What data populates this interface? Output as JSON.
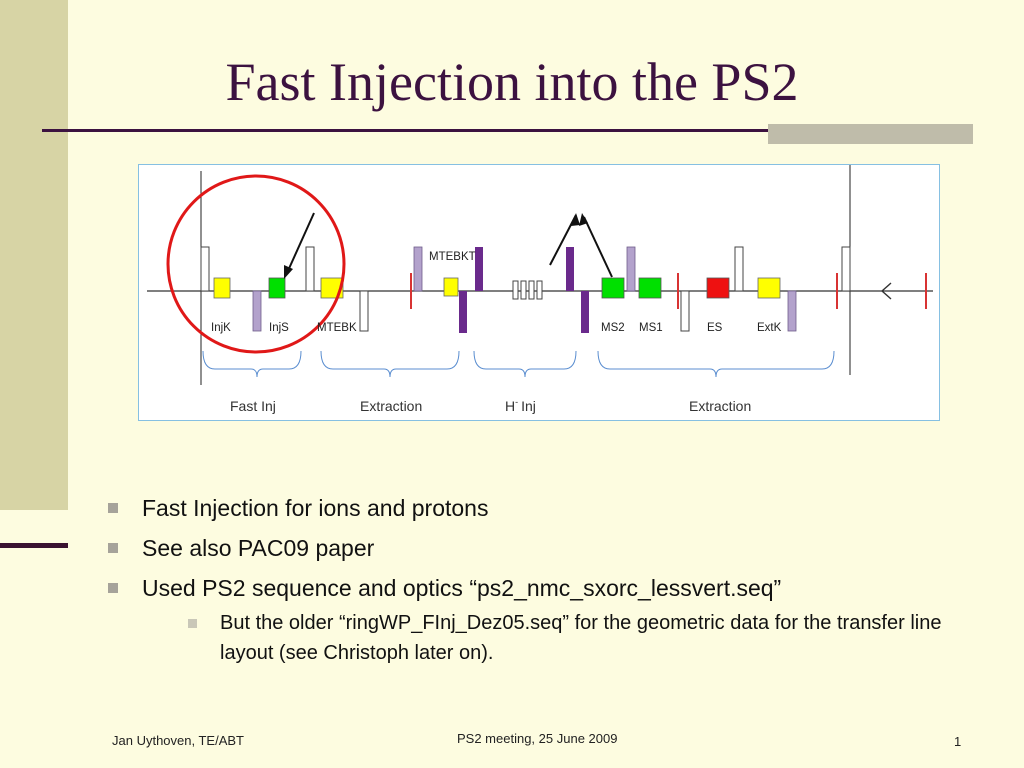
{
  "slide": {
    "title": "Fast Injection into the PS2",
    "bullets": [
      "Fast Injection for ions and protons",
      "See also PAC09 paper",
      "Used PS2 sequence and optics “ps2_nmc_sxorc_lessvert.seq”"
    ],
    "sub_bullets": [
      "But the older “ringWP_FInj_Dez05.seq” for the geometric data for the transfer line layout (see Christoph later on)."
    ],
    "footer": {
      "author": "Jan Uythoven, TE/ABT",
      "meeting": "PS2 meeting, 25 June 2009",
      "page": "1"
    }
  },
  "diagram": {
    "element_labels": {
      "injk": "InjK",
      "injs": "InjS",
      "mtebk": "MTEBK",
      "mtebkt": "MTEBKT",
      "ms2": "MS2",
      "ms1": "MS1",
      "es": "ES",
      "extk": "ExtK"
    },
    "section_labels": {
      "fast_inj": "Fast Inj",
      "extraction_1": "Extraction",
      "h_inj": "Inj",
      "h_inj_prefix": "H",
      "h_inj_sup": "-",
      "extraction_2": "Extraction"
    },
    "colors": {
      "yellow": "#ffff00",
      "green": "#00e000",
      "red": "#ee1111",
      "purple": "#6a2a8c",
      "lavender": "#b3a2cc",
      "highlight": "#e01818"
    }
  }
}
